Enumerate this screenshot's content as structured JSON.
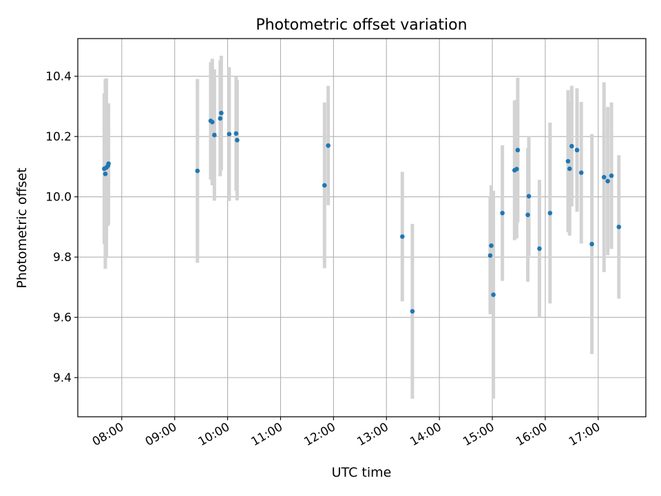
{
  "chart_data": {
    "type": "scatter",
    "title": "Photometric offset variation",
    "xlabel": "UTC time",
    "ylabel": "Photometric offset",
    "x_unit": "hours UTC",
    "xlim": [
      7.17,
      17.9
    ],
    "ylim": [
      9.27,
      10.525
    ],
    "xticks": [
      {
        "value": 8,
        "label": "08:00"
      },
      {
        "value": 9,
        "label": "09:00"
      },
      {
        "value": 10,
        "label": "10:00"
      },
      {
        "value": 11,
        "label": "11:00"
      },
      {
        "value": 12,
        "label": "12:00"
      },
      {
        "value": 13,
        "label": "13:00"
      },
      {
        "value": 14,
        "label": "14:00"
      },
      {
        "value": 15,
        "label": "15:00"
      },
      {
        "value": 16,
        "label": "16:00"
      },
      {
        "value": 17,
        "label": "17:00"
      }
    ],
    "yticks": [
      {
        "value": 9.4,
        "label": "9.4"
      },
      {
        "value": 9.6,
        "label": "9.6"
      },
      {
        "value": 9.8,
        "label": "9.8"
      },
      {
        "value": 10.0,
        "label": "10.0"
      },
      {
        "value": 10.2,
        "label": "10.2"
      },
      {
        "value": 10.4,
        "label": "10.4"
      }
    ],
    "grid": true,
    "marker_color": "#1f77b4",
    "errorbar_color": "#d3d3d3",
    "points": [
      {
        "x": 7.67,
        "y": 10.093,
        "yerr": 0.25
      },
      {
        "x": 7.69,
        "y": 10.076,
        "yerr": 0.315
      },
      {
        "x": 7.71,
        "y": 10.097,
        "yerr": 0.296
      },
      {
        "x": 7.74,
        "y": 10.103,
        "yerr": 0.2
      },
      {
        "x": 7.75,
        "y": 10.11,
        "yerr": 0.2
      },
      {
        "x": 9.43,
        "y": 10.086,
        "yerr": 0.305
      },
      {
        "x": 9.68,
        "y": 10.252,
        "yerr": 0.195
      },
      {
        "x": 9.71,
        "y": 10.248,
        "yerr": 0.21
      },
      {
        "x": 9.75,
        "y": 10.205,
        "yerr": 0.218
      },
      {
        "x": 9.86,
        "y": 10.26,
        "yerr": 0.192
      },
      {
        "x": 9.88,
        "y": 10.278,
        "yerr": 0.19
      },
      {
        "x": 10.03,
        "y": 10.208,
        "yerr": 0.222
      },
      {
        "x": 10.16,
        "y": 10.21,
        "yerr": 0.19
      },
      {
        "x": 10.18,
        "y": 10.188,
        "yerr": 0.2
      },
      {
        "x": 11.83,
        "y": 10.038,
        "yerr": 0.275
      },
      {
        "x": 11.9,
        "y": 10.17,
        "yerr": 0.198
      },
      {
        "x": 13.3,
        "y": 9.868,
        "yerr": 0.215
      },
      {
        "x": 13.49,
        "y": 9.62,
        "yerr": 0.29
      },
      {
        "x": 14.96,
        "y": 9.805,
        "yerr": 0.195
      },
      {
        "x": 14.98,
        "y": 9.838,
        "yerr": 0.2
      },
      {
        "x": 15.02,
        "y": 9.675,
        "yerr": 0.345
      },
      {
        "x": 15.19,
        "y": 9.946,
        "yerr": 0.225
      },
      {
        "x": 15.42,
        "y": 10.088,
        "yerr": 0.232
      },
      {
        "x": 15.46,
        "y": 10.092,
        "yerr": 0.23
      },
      {
        "x": 15.48,
        "y": 10.155,
        "yerr": 0.24
      },
      {
        "x": 15.67,
        "y": 9.94,
        "yerr": 0.222
      },
      {
        "x": 15.69,
        "y": 10.002,
        "yerr": 0.198
      },
      {
        "x": 15.89,
        "y": 9.828,
        "yerr": 0.228
      },
      {
        "x": 16.09,
        "y": 9.946,
        "yerr": 0.3
      },
      {
        "x": 16.43,
        "y": 10.118,
        "yerr": 0.236
      },
      {
        "x": 16.46,
        "y": 10.093,
        "yerr": 0.222
      },
      {
        "x": 16.5,
        "y": 10.168,
        "yerr": 0.2
      },
      {
        "x": 16.6,
        "y": 10.155,
        "yerr": 0.205
      },
      {
        "x": 16.68,
        "y": 10.08,
        "yerr": 0.235
      },
      {
        "x": 16.88,
        "y": 9.843,
        "yerr": 0.365
      },
      {
        "x": 17.11,
        "y": 10.065,
        "yerr": 0.315
      },
      {
        "x": 17.18,
        "y": 10.052,
        "yerr": 0.246
      },
      {
        "x": 17.25,
        "y": 10.07,
        "yerr": 0.243
      },
      {
        "x": 17.39,
        "y": 9.9,
        "yerr": 0.238
      }
    ]
  }
}
